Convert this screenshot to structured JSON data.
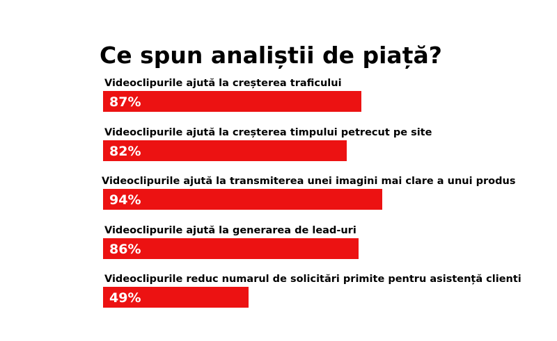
{
  "chart_data": {
    "type": "bar",
    "orientation": "horizontal",
    "title": "Ce spun analiștii de piață?",
    "categories": [
      "Videoclipurile ajută la creșterea traficului",
      "Videoclipurile ajută la creșterea timpului petrecut pe site",
      "Videoclipurile ajută la transmiterea unei imagini mai clare a unui produs",
      "Videoclipurile ajută la generarea de lead-uri",
      "Videoclipurile reduc numarul de solicitări primite pentru asistență clienti"
    ],
    "values": [
      87,
      82,
      94,
      86,
      49
    ],
    "value_labels": [
      "87%",
      "82%",
      "94%",
      "86%",
      "49%"
    ],
    "unit": "%",
    "xlim": [
      0,
      100
    ],
    "grid": false,
    "legend": "none",
    "bar_color": "#ec1212"
  }
}
